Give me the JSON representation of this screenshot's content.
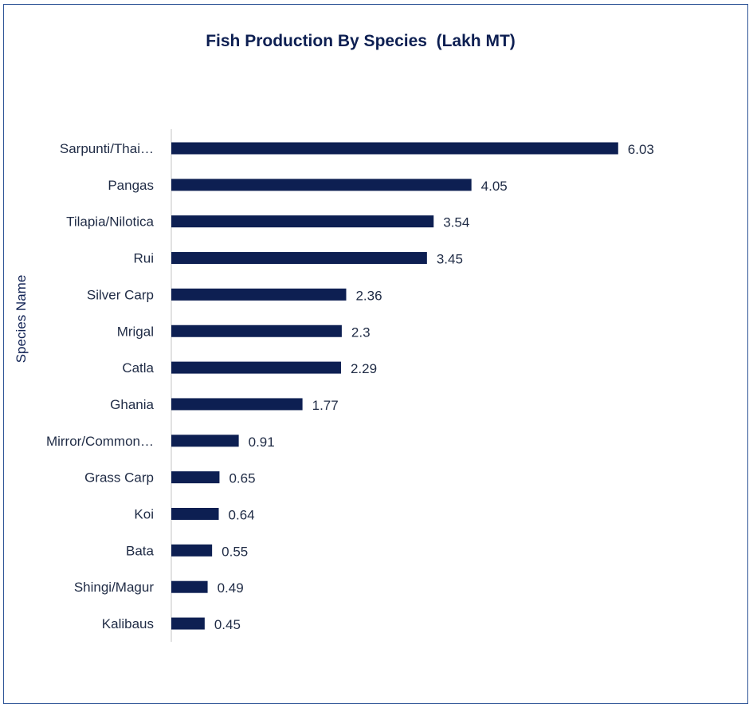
{
  "chart_data": {
    "type": "bar",
    "orientation": "horizontal",
    "title": "Fish Production By Species  (Lakh MT)",
    "ylabel": "Species Name",
    "xlabel": "",
    "categories": [
      "Sarpunti/Thai…",
      "Pangas",
      "Tilapia/Nilotica",
      "Rui",
      "Silver Carp",
      "Mrigal",
      "Catla",
      "Ghania",
      "Mirror/Common…",
      "Grass Carp",
      "Koi",
      "Bata",
      "Shingi/Magur",
      "Kalibaus"
    ],
    "values": [
      6.03,
      4.05,
      3.54,
      3.45,
      2.36,
      2.3,
      2.29,
      1.77,
      0.91,
      0.65,
      0.64,
      0.55,
      0.49,
      0.45
    ],
    "data_labels": [
      "6.03",
      "4.05",
      "3.54",
      "3.45",
      "2.36",
      "2.3",
      "2.29",
      "1.77",
      "0.91",
      "0.65",
      "0.64",
      "0.55",
      "0.49",
      "0.45"
    ],
    "xlim": [
      0,
      7
    ],
    "bar_color": "#0d1f52",
    "grid": false,
    "legend": "none"
  }
}
